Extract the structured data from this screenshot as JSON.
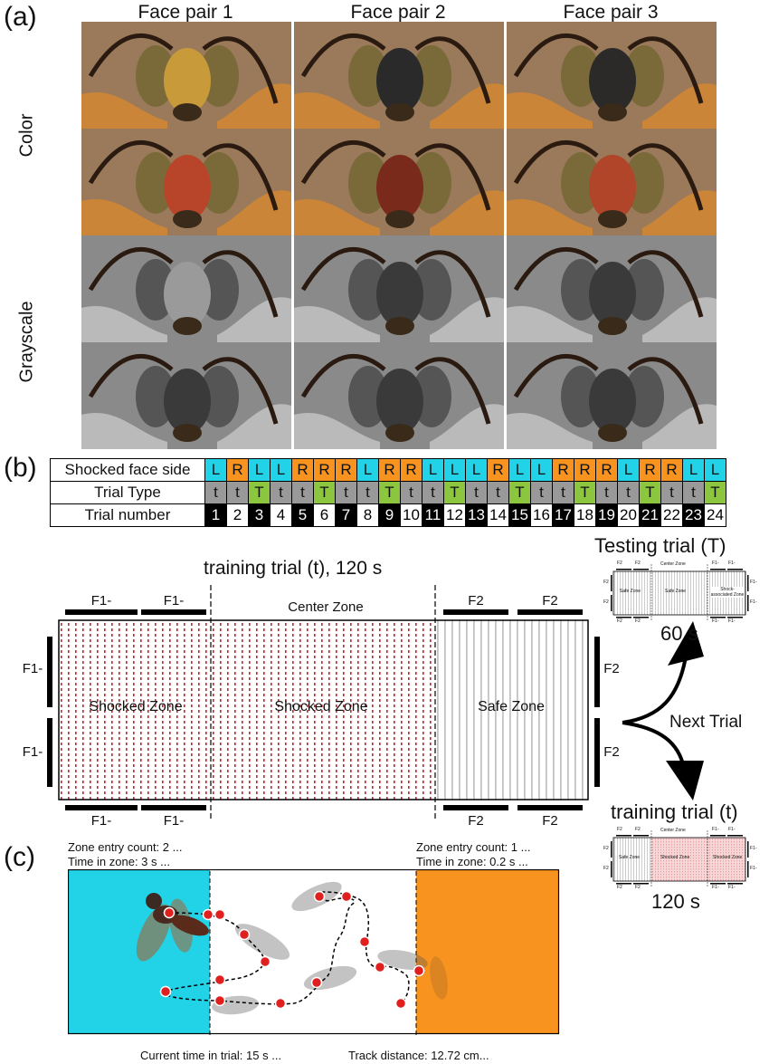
{
  "panel_a": {
    "label": "(a)",
    "columns": [
      "Face pair 1",
      "Face pair 2",
      "Face pair 3"
    ],
    "rows": [
      "Color",
      "Grayscale"
    ]
  },
  "panel_b": {
    "label": "(b)",
    "schedule": {
      "row_labels": [
        "Shocked face side",
        "Trial Type",
        "Trial number"
      ],
      "sides": [
        "L",
        "R",
        "L",
        "L",
        "R",
        "R",
        "R",
        "L",
        "R",
        "R",
        "L",
        "L",
        "L",
        "R",
        "L",
        "L",
        "R",
        "R",
        "R",
        "L",
        "R",
        "R",
        "L",
        "L"
      ],
      "types": [
        "t",
        "t",
        "T",
        "t",
        "t",
        "T",
        "t",
        "t",
        "T",
        "t",
        "t",
        "T",
        "t",
        "t",
        "T",
        "t",
        "t",
        "T",
        "t",
        "t",
        "T",
        "t",
        "t",
        "T"
      ],
      "numbers": [
        "1",
        "2",
        "3",
        "4",
        "5",
        "6",
        "7",
        "8",
        "9",
        "10",
        "11",
        "12",
        "13",
        "14",
        "15",
        "16",
        "17",
        "18",
        "19",
        "20",
        "21",
        "22",
        "23",
        "24"
      ],
      "number_shading": [
        "black",
        "white",
        "black",
        "white",
        "black",
        "white",
        "black",
        "white",
        "black",
        "white",
        "black",
        "white",
        "black",
        "white",
        "black",
        "white",
        "black",
        "white",
        "black",
        "white",
        "black",
        "white",
        "black",
        "white"
      ]
    },
    "main_arena": {
      "title": "training trial (t), 120 s",
      "center_zone": "Center Zone",
      "left_zone": "Shocked Zone",
      "middle_zone": "Shocked Zone",
      "right_zone": "Safe Zone",
      "top_bars": [
        "F1-",
        "F1-",
        "F2",
        "F2"
      ],
      "bottom_bars": [
        "F1-",
        "F1-",
        "F2",
        "F2"
      ],
      "left_bars": [
        "F1-",
        "F1-"
      ],
      "right_bars": [
        "F2",
        "F2"
      ]
    },
    "next_trial": "Next Trial",
    "testing_trial": {
      "title": "Testing trial (T)",
      "duration": "60 s",
      "zones": [
        "Safe Zone",
        "Safe Zone",
        "Shock-associated Zone"
      ],
      "center_zone": "Center Zone",
      "top_bars": [
        "F2",
        "F2",
        "F1-",
        "F1-"
      ],
      "bottom_bars": [
        "F2",
        "F2",
        "F1-",
        "F1-"
      ],
      "left_bars": [
        "F2",
        "F2"
      ],
      "right_bars": [
        "F1-",
        "F1-"
      ]
    },
    "training_trial_small": {
      "title": "training trial (t)",
      "duration": "120 s",
      "zones": [
        "Safe Zone",
        "Shocked Zone",
        "Shocked Zone"
      ],
      "center_zone": "Center Zone",
      "top_bars": [
        "F2",
        "F2",
        "F1-",
        "F1-"
      ],
      "bottom_bars": [
        "F2",
        "F2",
        "F1-",
        "F1-"
      ],
      "left_bars": [
        "F2",
        "F2"
      ],
      "right_bars": [
        "F1-",
        "F1-"
      ]
    }
  },
  "panel_c": {
    "label": "(c)",
    "left_entry": "Zone entry count: 2 ...",
    "left_time": "Time in zone: 3 s ...",
    "right_entry": "Zone entry count: 1 ...",
    "right_time": "Time in zone: 0.2 s ...",
    "current_time": "Current time in trial: 15 s ...",
    "track_distance": "Track distance:  12.72 cm..."
  },
  "colors": {
    "cyan": "#22d3e8",
    "orange": "#f7931e",
    "green": "#8cc63f",
    "gray": "#999999",
    "shock_red": "#cc2222"
  }
}
